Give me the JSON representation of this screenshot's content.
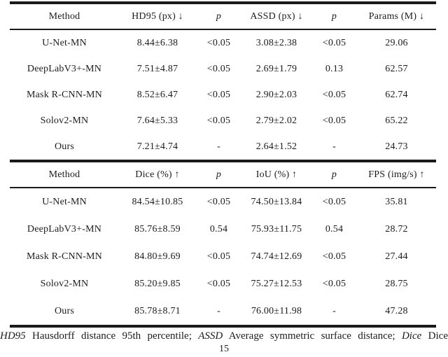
{
  "table1": {
    "headers": [
      "Method",
      "HD95 (px) ↓",
      "p",
      "ASSD (px) ↓",
      "p",
      "Params (M) ↓"
    ],
    "rows": [
      [
        "U-Net-MN",
        "8.44±6.38",
        "<0.05",
        "3.08±2.38",
        "<0.05",
        "29.06"
      ],
      [
        "DeepLabV3+-MN",
        "7.51±4.87",
        "<0.05",
        "2.69±1.79",
        "0.13",
        "62.57"
      ],
      [
        "Mask R-CNN-MN",
        "8.52±6.47",
        "<0.05",
        "2.90±2.03",
        "<0.05",
        "62.74"
      ],
      [
        "Solov2-MN",
        "7.64±5.33",
        "<0.05",
        "2.79±2.02",
        "<0.05",
        "65.22"
      ],
      [
        "Ours",
        "7.21±4.74",
        "-",
        "2.64±1.52",
        "-",
        "24.73"
      ]
    ]
  },
  "table2": {
    "headers": [
      "Method",
      "Dice (%) ↑",
      "p",
      "IoU (%) ↑",
      "p",
      "FPS (img/s) ↑"
    ],
    "rows": [
      [
        "U-Net-MN",
        "84.54±10.85",
        "<0.05",
        "74.50±13.84",
        "<0.05",
        "35.81"
      ],
      [
        "DeepLabV3+-MN",
        "85.76±8.59",
        "0.54",
        "75.93±11.75",
        "0.54",
        "28.72"
      ],
      [
        "Mask R-CNN-MN",
        "84.80±9.69",
        "<0.05",
        "74.74±12.69",
        "<0.05",
        "27.44"
      ],
      [
        "Solov2-MN",
        "85.20±9.85",
        "<0.05",
        "75.27±12.53",
        "<0.05",
        "28.75"
      ],
      [
        "Ours",
        "85.78±8.71",
        "-",
        "76.00±11.98",
        "-",
        "47.28"
      ]
    ]
  },
  "footnote": {
    "segments": [
      {
        "text": "HD95"
      },
      {
        "text": " Hausdorff distance 95th percentile; "
      },
      {
        "text": "ASSD"
      },
      {
        "text": " Average symmetric surface distance; "
      },
      {
        "text": "Dice"
      },
      {
        "text": " Dice"
      }
    ]
  },
  "page_number": "15",
  "colors": {
    "text": "#1c1c1c",
    "rule": "#1a1a1a",
    "background": "#ffffff"
  }
}
